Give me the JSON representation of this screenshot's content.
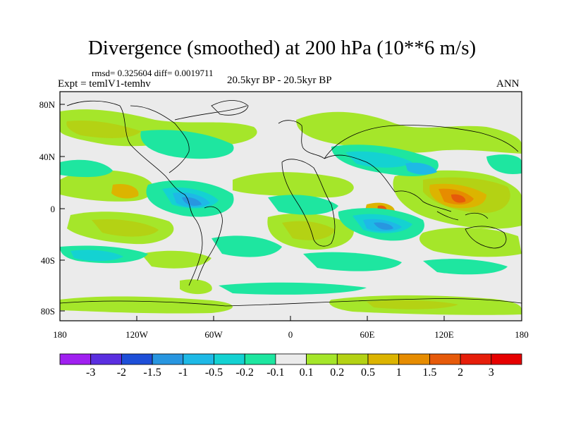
{
  "title": "Divergence (smoothed) at 200 hPa (10**6 m/s)",
  "stats": "rmsd= 0.325604  diff= 0.0019711",
  "experiment": "Expt = temlV1-temhv",
  "period": "20.5kyr BP - 20.5kyr BP",
  "season": "ANN",
  "axes": {
    "lat_labels": [
      "80N",
      "40N",
      "0",
      "40S",
      "80S"
    ],
    "lon_labels": [
      "180",
      "120W",
      "60W",
      "0",
      "60E",
      "120E",
      "180"
    ]
  },
  "colorbar": {
    "labels": [
      "-3",
      "-2",
      "-1.5",
      "-1",
      "-0.5",
      "-0.2",
      "-0.1",
      "0.1",
      "0.2",
      "0.5",
      "1",
      "1.5",
      "2",
      "3"
    ],
    "colors": [
      "#a020f0",
      "#5a2ee0",
      "#1e4fd8",
      "#2896e0",
      "#1eb9e6",
      "#14d2d2",
      "#1ee6a0",
      "#ebebeb",
      "#a5e62a",
      "#b4d214",
      "#dcb400",
      "#e68c00",
      "#e65a0a",
      "#e61e0a",
      "#e60000"
    ]
  },
  "field_colors": {
    "background": "#ebebeb",
    "neg_weak": "#1ee6a0",
    "neg_mid": "#14d2d2",
    "neg_strong": "#1eb9e6",
    "neg_max": "#2896e0",
    "pos_weak": "#a5e62a",
    "pos_mid": "#b4d214",
    "pos_strong": "#dcb400",
    "pos_max": "#e68c00",
    "pos_peak": "#e65a0a"
  }
}
